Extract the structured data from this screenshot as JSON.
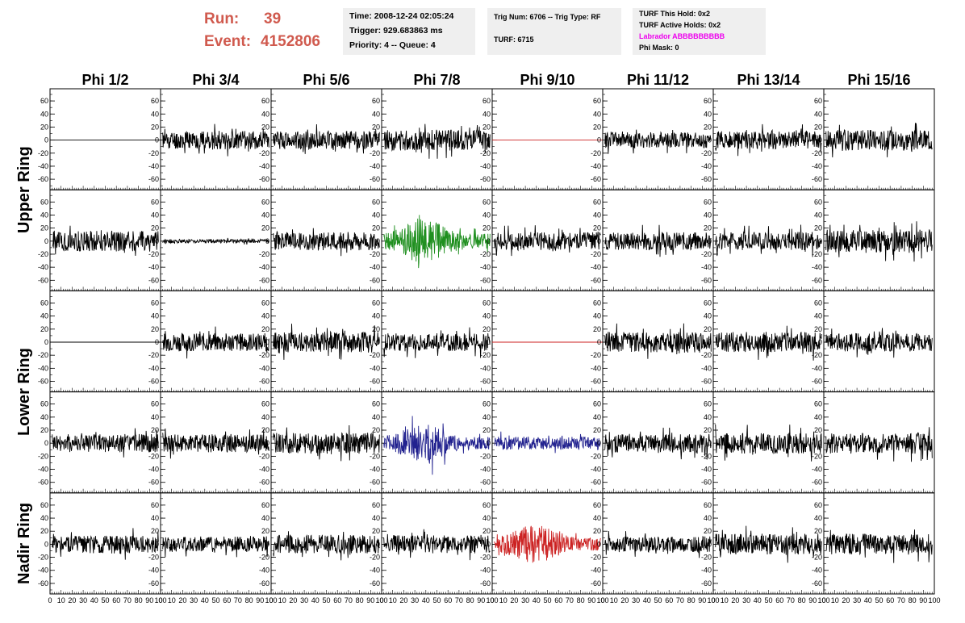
{
  "header": {
    "run_label": "Run:",
    "run_value": "39",
    "event_label": "Event:",
    "event_value": "4152806"
  },
  "info_time": {
    "time": "Time: 2008-12-24 02:05:24",
    "trigger": "Trigger: 929.683863 ms",
    "priority": "Priority: 4 -- Queue: 4"
  },
  "info_trig": {
    "trig_num": "Trig Num: 6706 -- Trig Type: RF",
    "turf": "TURF: 6715"
  },
  "info_turf": {
    "this_hold": "TURF This Hold: 0x2",
    "active_holds": "TURF Active Holds: 0x2",
    "labrador": "Labrador ABBBBBBBBB",
    "phi_mask": "Phi Mask: 0"
  },
  "colors": {
    "run_text": "#d05a4e",
    "labrador_text": "#ee00ee",
    "trace_default": "#000000",
    "trace_red": "#cc2222",
    "trace_green": "#1f8f1f",
    "trace_blue": "#22228f"
  },
  "chart_data": {
    "type": "line",
    "columns": [
      "Phi 1/2",
      "Phi 3/4",
      "Phi 5/6",
      "Phi 7/8",
      "Phi 9/10",
      "Phi 11/12",
      "Phi 13/14",
      "Phi 15/16"
    ],
    "ring_labels": [
      {
        "label": "Upper Ring",
        "rows": [
          0,
          1
        ]
      },
      {
        "label": "Lower Ring",
        "rows": [
          2,
          3
        ]
      },
      {
        "label": "Nadir Ring",
        "rows": [
          4
        ]
      }
    ],
    "xlim": [
      0,
      100
    ],
    "ylim": [
      -70,
      70
    ],
    "x_tick_labels": [
      "0",
      "10",
      "20",
      "30",
      "40",
      "50",
      "60",
      "70",
      "80",
      "90",
      "100"
    ],
    "y_tick_labels": [
      "-60",
      "-40",
      "-20",
      "0",
      "20",
      "40",
      "60"
    ],
    "panels": [
      [
        {
          "style": "flat",
          "color": "black"
        },
        {
          "style": "noise",
          "amp": 14,
          "color": "black",
          "seed": 11
        },
        {
          "style": "noise",
          "amp": 14,
          "color": "black",
          "seed": 12
        },
        {
          "style": "noise",
          "amp": 16,
          "color": "black",
          "seed": 13
        },
        {
          "style": "flat",
          "color": "red"
        },
        {
          "style": "noise",
          "amp": 12,
          "color": "black",
          "seed": 15
        },
        {
          "style": "noise",
          "amp": 14,
          "color": "black",
          "seed": 16
        },
        {
          "style": "noise",
          "amp": 16,
          "color": "black",
          "seed": 17
        }
      ],
      [
        {
          "style": "noise",
          "amp": 16,
          "color": "black",
          "seed": 21
        },
        {
          "style": "noise",
          "amp": 3,
          "color": "black",
          "seed": 22
        },
        {
          "style": "noise",
          "amp": 14,
          "color": "black",
          "seed": 23
        },
        {
          "style": "burst",
          "amp": 25,
          "color": "green",
          "seed": 24
        },
        {
          "style": "noise",
          "amp": 14,
          "color": "black",
          "seed": 25
        },
        {
          "style": "noise",
          "amp": 14,
          "color": "black",
          "seed": 26
        },
        {
          "style": "noise",
          "amp": 14,
          "color": "black",
          "seed": 27
        },
        {
          "style": "noise",
          "amp": 18,
          "color": "black",
          "seed": 28
        }
      ],
      [
        {
          "style": "flat",
          "color": "black"
        },
        {
          "style": "noise",
          "amp": 14,
          "color": "black",
          "seed": 32
        },
        {
          "style": "noise",
          "amp": 16,
          "color": "black",
          "seed": 33
        },
        {
          "style": "noise",
          "amp": 14,
          "color": "black",
          "seed": 34
        },
        {
          "style": "flat",
          "color": "red"
        },
        {
          "style": "noise",
          "amp": 16,
          "color": "black",
          "seed": 36
        },
        {
          "style": "noise",
          "amp": 16,
          "color": "black",
          "seed": 37
        },
        {
          "style": "noise",
          "amp": 14,
          "color": "black",
          "seed": 38
        }
      ],
      [
        {
          "style": "noise",
          "amp": 14,
          "color": "black",
          "seed": 41
        },
        {
          "style": "noise",
          "amp": 14,
          "color": "black",
          "seed": 42
        },
        {
          "style": "noise",
          "amp": 16,
          "color": "black",
          "seed": 43
        },
        {
          "style": "burst",
          "amp": 22,
          "color": "blue",
          "seed": 44
        },
        {
          "style": "noise",
          "amp": 10,
          "color": "blue",
          "seed": 45
        },
        {
          "style": "noise",
          "amp": 14,
          "color": "black",
          "seed": 46
        },
        {
          "style": "noise",
          "amp": 16,
          "color": "black",
          "seed": 47
        },
        {
          "style": "noise",
          "amp": 16,
          "color": "black",
          "seed": 48
        }
      ],
      [
        {
          "style": "noise",
          "amp": 14,
          "color": "black",
          "seed": 51
        },
        {
          "style": "noise",
          "amp": 12,
          "color": "black",
          "seed": 52
        },
        {
          "style": "noise",
          "amp": 14,
          "color": "black",
          "seed": 53
        },
        {
          "style": "noise",
          "amp": 14,
          "color": "black",
          "seed": 54
        },
        {
          "style": "burst",
          "amp": 22,
          "color": "red",
          "seed": 55
        },
        {
          "style": "noise",
          "amp": 12,
          "color": "black",
          "seed": 56
        },
        {
          "style": "noise",
          "amp": 16,
          "color": "black",
          "seed": 57
        },
        {
          "style": "noise",
          "amp": 16,
          "color": "black",
          "seed": 58
        }
      ]
    ]
  }
}
